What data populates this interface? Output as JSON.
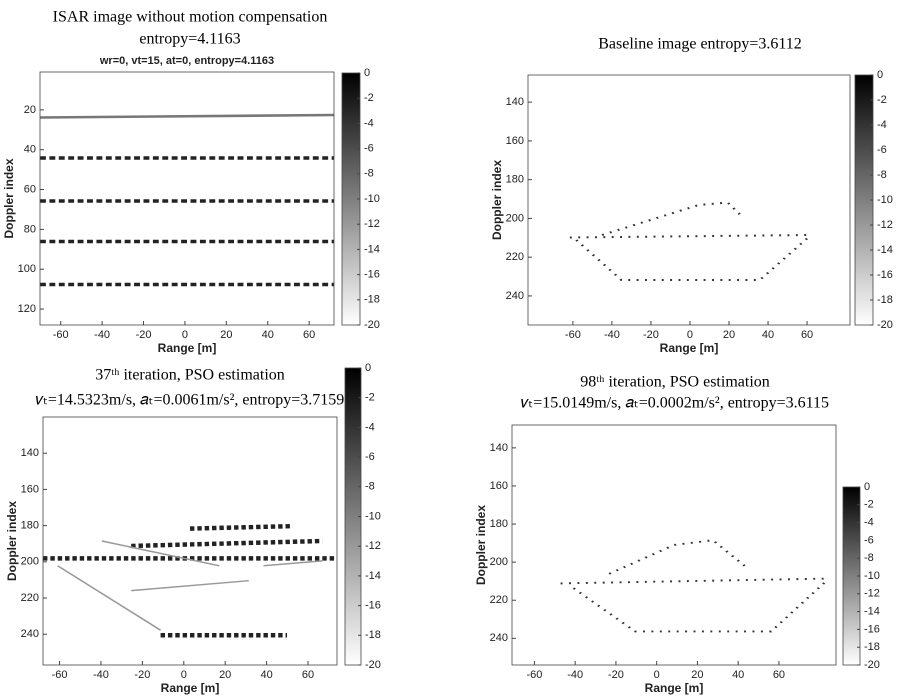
{
  "chart_data": [
    {
      "type": "heatmap",
      "title": [
        "ISAR image without motion compensation",
        "entropy=4.1163"
      ],
      "subtitle": "wr=0, vt=15, at=0, entropy=4.1163",
      "xlabel": "Range [m]",
      "ylabel": "Doppler index",
      "xlim": [
        -70,
        72
      ],
      "xticks": [
        -60,
        -40,
        -20,
        0,
        20,
        40,
        60
      ],
      "ylim": [
        1,
        128
      ],
      "yticks": [
        20,
        40,
        60,
        80,
        100,
        120
      ],
      "y_reversed": true,
      "clim": [
        -20,
        0
      ],
      "cticks": [
        0,
        -2,
        -4,
        -6,
        -8,
        -10,
        -12,
        -14,
        -16,
        -18,
        -20
      ]
    },
    {
      "type": "heatmap",
      "title": [
        "Baseline image entropy=3.6112"
      ],
      "xlabel": "Range [m]",
      "ylabel": "Doppler index",
      "xlim": [
        -83,
        82
      ],
      "xticks": [
        -60,
        -40,
        -20,
        0,
        20,
        40,
        60
      ],
      "ylim": [
        126,
        255
      ],
      "yticks": [
        140,
        160,
        180,
        200,
        220,
        240
      ],
      "y_reversed": true,
      "clim": [
        -20,
        0
      ],
      "cticks": [
        0,
        -2,
        -4,
        -6,
        -8,
        -10,
        -12,
        -14,
        -16,
        -18,
        -20
      ]
    },
    {
      "type": "heatmap",
      "title": [
        "37ᵗʰ iteration, PSO estimation",
        "𝑣ₜ=14.5323m/s, 𝑎ₜ=0.0061m/s², entropy=3.7159"
      ],
      "xlabel": "Range [m]",
      "ylabel": "Doppler index",
      "xlim": [
        -68,
        74
      ],
      "xticks": [
        -60,
        -40,
        -20,
        0,
        20,
        40,
        60
      ],
      "ylim": [
        120,
        257
      ],
      "yticks": [
        140,
        160,
        180,
        200,
        220,
        240
      ],
      "y_reversed": true,
      "clim": [
        -20,
        0
      ],
      "cticks": [
        0,
        -2,
        -4,
        -6,
        -8,
        -10,
        -12,
        -14,
        -16,
        -18,
        -20
      ]
    },
    {
      "type": "heatmap",
      "title": [
        "98ᵗʰ iteration, PSO estimation",
        "𝑣ₜ=15.0149m/s, 𝑎ₜ=0.0002m/s², entropy=3.6115"
      ],
      "xlabel": "Range [m]",
      "ylabel": "Doppler index",
      "xlim": [
        -71,
        88
      ],
      "xticks": [
        -60,
        -40,
        -20,
        0,
        20,
        40,
        60
      ],
      "ylim": [
        128,
        254
      ],
      "yticks": [
        140,
        160,
        180,
        200,
        220,
        240
      ],
      "y_reversed": true,
      "clim": [
        -20,
        0
      ],
      "cticks": [
        0,
        -2,
        -4,
        -6,
        -8,
        -10,
        -12,
        -14,
        -16,
        -18,
        -20
      ]
    }
  ]
}
